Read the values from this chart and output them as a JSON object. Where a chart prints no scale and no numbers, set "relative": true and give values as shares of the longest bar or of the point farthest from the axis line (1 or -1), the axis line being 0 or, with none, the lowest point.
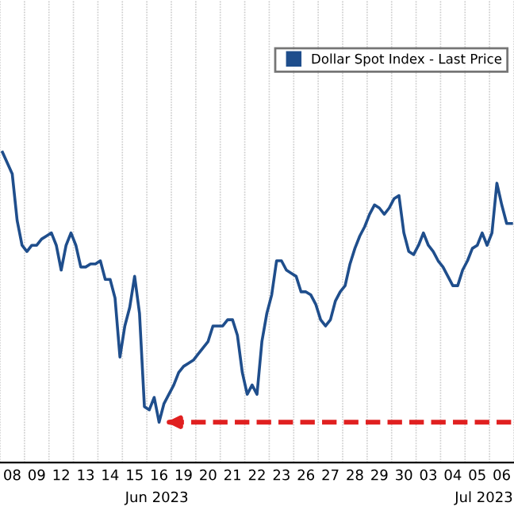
{
  "chart_data": {
    "type": "line",
    "relative": true,
    "categories": [
      null,
      null,
      "08",
      null,
      null,
      null,
      null,
      "09",
      null,
      null,
      null,
      null,
      "12",
      null,
      null,
      null,
      null,
      "13",
      null,
      null,
      null,
      null,
      "14",
      null,
      null,
      null,
      null,
      "15",
      null,
      null,
      null,
      null,
      "16",
      null,
      null,
      null,
      null,
      "19",
      null,
      null,
      null,
      null,
      "20",
      null,
      null,
      null,
      null,
      "21",
      null,
      null,
      null,
      null,
      "22",
      null,
      null,
      null,
      null,
      "23",
      null,
      null,
      null,
      null,
      "26",
      null,
      null,
      null,
      null,
      "27",
      null,
      null,
      null,
      null,
      "28",
      null,
      null,
      null,
      null,
      "29",
      null,
      null,
      null,
      null,
      "30",
      null,
      null,
      null,
      null,
      "03",
      null,
      null,
      null,
      null,
      "04",
      null,
      null,
      null,
      null,
      "05",
      null,
      null,
      null,
      null,
      "06",
      null,
      null
    ],
    "annotations": [
      "Jun 2023",
      "Jul 2023"
    ],
    "ref_lines": [
      {
        "axis": "y",
        "value": 0.13,
        "color": "#e02020",
        "line_style": "dashed"
      }
    ],
    "grid": true,
    "legend": "top right",
    "series": [
      {
        "name": "Dollar Spot Index - Last Price",
        "color": "#1f4e8c",
        "values": [
          1.0,
          0.965,
          0.93,
          0.78,
          0.7,
          0.68,
          0.7,
          0.7,
          0.72,
          0.73,
          0.74,
          0.7,
          0.62,
          0.7,
          0.74,
          0.7,
          0.63,
          0.63,
          0.64,
          0.64,
          0.65,
          0.59,
          0.59,
          0.53,
          0.34,
          0.44,
          0.5,
          0.6,
          0.48,
          0.18,
          0.17,
          0.21,
          0.13,
          0.19,
          0.22,
          0.25,
          0.29,
          0.31,
          0.32,
          0.33,
          0.35,
          0.37,
          0.39,
          0.44,
          0.44,
          0.44,
          0.46,
          0.46,
          0.41,
          0.29,
          0.22,
          0.25,
          0.22,
          0.39,
          0.48,
          0.54,
          0.65,
          0.65,
          0.62,
          0.61,
          0.6,
          0.55,
          0.55,
          0.54,
          0.51,
          0.46,
          0.44,
          0.46,
          0.52,
          0.55,
          0.57,
          0.64,
          0.69,
          0.73,
          0.76,
          0.8,
          0.83,
          0.82,
          0.8,
          0.82,
          0.85,
          0.86,
          0.74,
          0.68,
          0.67,
          0.7,
          0.74,
          0.7,
          0.68,
          0.65,
          0.63,
          0.6,
          0.57,
          0.57,
          0.62,
          0.65,
          0.69,
          0.7,
          0.74,
          0.7,
          0.74,
          0.9,
          0.83,
          0.77,
          0.77
        ]
      }
    ]
  }
}
